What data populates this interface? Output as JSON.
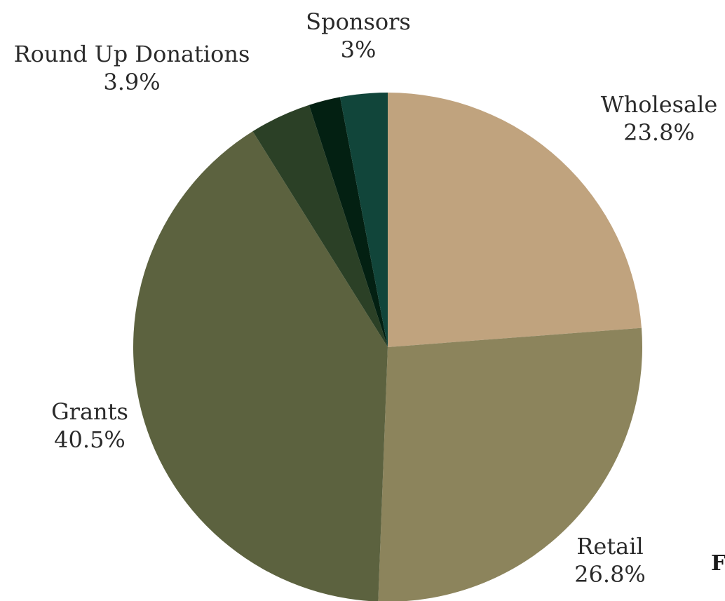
{
  "chart_data": {
    "type": "pie",
    "start": "top",
    "direction": "clockwise",
    "title": "",
    "slices": [
      {
        "label": "Wholesale",
        "value": 23.8,
        "value_text": "23.8%",
        "color": "#C0A37E"
      },
      {
        "label": "Retail",
        "value": 26.8,
        "value_text": "26.8%",
        "color": "#8C845C"
      },
      {
        "label": "Grants",
        "value": 40.5,
        "value_text": "40.5%",
        "color": "#5C623F"
      },
      {
        "label": "Round Up Donations",
        "value": 3.9,
        "value_text": "3.9%",
        "color": "#2B4026"
      },
      {
        "label": "",
        "value": 2.0,
        "value_text": "",
        "color": "#032012"
      },
      {
        "label": "Sponsors",
        "value": 3.0,
        "value_text": "3%",
        "color": "#11453A"
      }
    ]
  },
  "edge_text": "F"
}
